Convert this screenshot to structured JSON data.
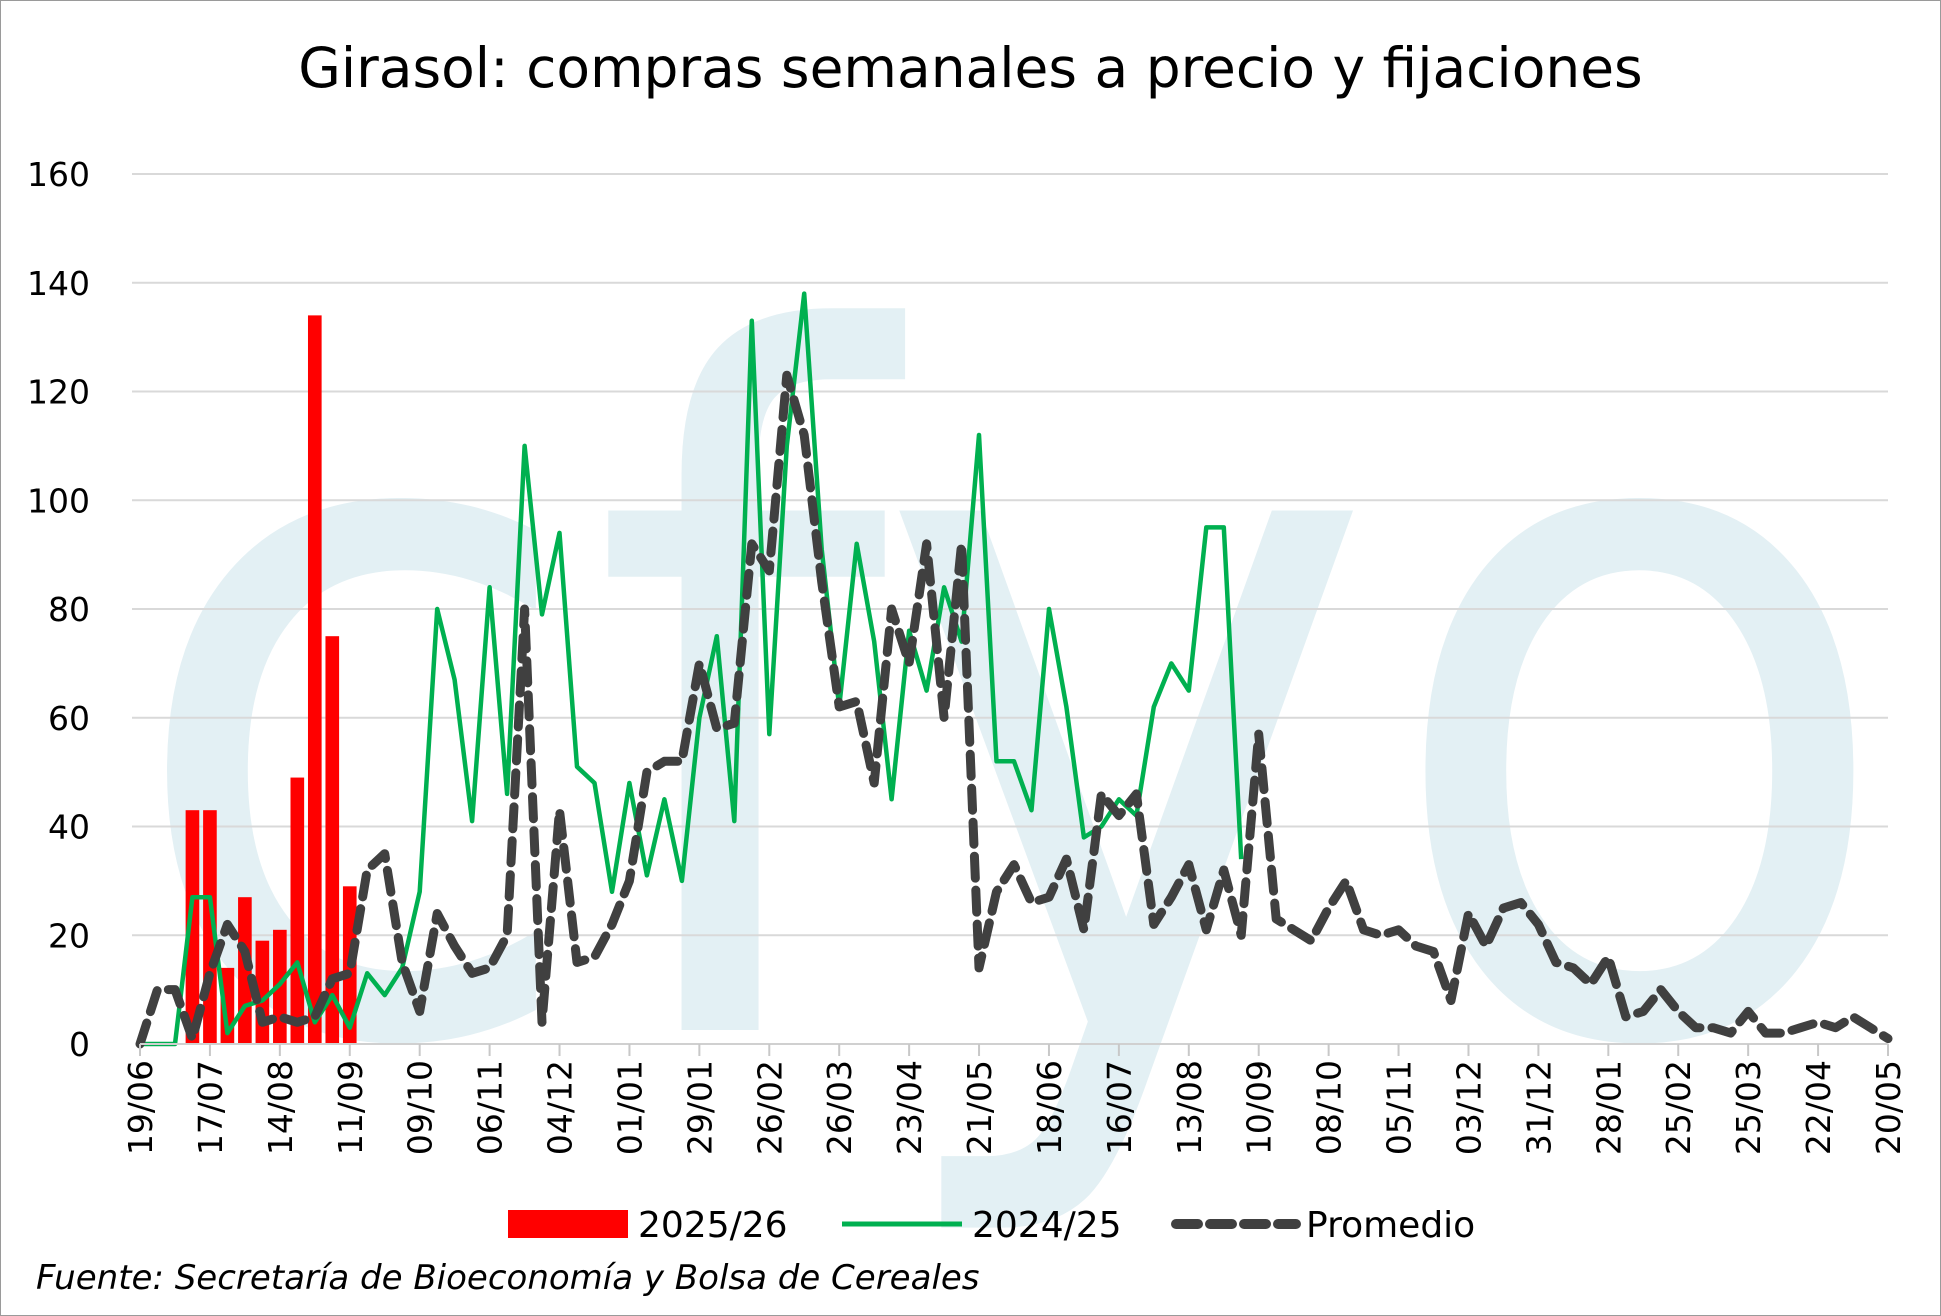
{
  "title": "Girasol: compras semanales a precio y fijaciones",
  "source_note": "Fuente: Secretaría de Bioeconomía y Bolsa de Cereales",
  "watermark_text": "cfyo",
  "colors": {
    "bars": "#ff0000",
    "line_2024": "#00b050",
    "line_avg": "#404040",
    "grid": "#d9d9d9",
    "watermark": "#e3f0f4"
  },
  "chart_data": {
    "type": "bar+line",
    "title": "Girasol: compras semanales a precio y fijaciones",
    "xlabel": "",
    "ylabel": "",
    "ylim": [
      0,
      160
    ],
    "yticks": [
      0,
      20,
      40,
      60,
      80,
      100,
      120,
      140,
      160
    ],
    "grid": true,
    "legend_position": "bottom",
    "x_tick_labels": [
      "19/06",
      "17/07",
      "14/08",
      "11/09",
      "09/10",
      "06/11",
      "04/12",
      "01/01",
      "29/01",
      "26/02",
      "26/03",
      "23/04",
      "21/05",
      "18/06",
      "16/07",
      "13/08",
      "10/09",
      "08/10",
      "05/11",
      "03/12",
      "31/12",
      "28/01",
      "25/02",
      "25/03",
      "22/04",
      "20/05"
    ],
    "weeks_total": 101,
    "series": [
      {
        "name": "2025/26",
        "kind": "bar",
        "color": "#ff0000",
        "week_index_start": 3,
        "values": [
          43,
          43,
          14,
          27,
          19,
          21,
          49,
          134,
          75,
          29
        ]
      },
      {
        "name": "2024/25",
        "kind": "line",
        "color": "#00b050",
        "week_index_start": 0,
        "values": [
          0,
          0,
          0,
          27,
          27,
          2,
          7,
          8,
          11,
          15,
          4,
          9,
          3,
          13,
          9,
          14,
          28,
          80,
          67,
          41,
          84,
          46,
          110,
          79,
          94,
          51,
          48,
          28,
          48,
          31,
          45,
          30,
          60,
          75,
          41,
          133,
          57,
          110,
          138,
          91,
          62,
          92,
          74,
          45,
          76,
          65,
          84,
          74,
          112,
          52,
          52,
          43,
          80,
          62,
          38,
          40,
          45,
          42,
          62,
          70,
          65,
          95,
          95,
          34
        ]
      },
      {
        "name": "Promedio",
        "kind": "dashed-line",
        "color": "#404040",
        "week_index_start": 0,
        "values": [
          0,
          10,
          10,
          1,
          13,
          22,
          17,
          4,
          5,
          4,
          5,
          12,
          13,
          32,
          35,
          15,
          6,
          24,
          18,
          13,
          14,
          20,
          80,
          4,
          43,
          15,
          16,
          22,
          30,
          50,
          52,
          52,
          70,
          58,
          59,
          92,
          87,
          123,
          112,
          85,
          62,
          63,
          48,
          80,
          70,
          92,
          60,
          92,
          14,
          28,
          33,
          26,
          27,
          34,
          21,
          46,
          42,
          46,
          22,
          27,
          33,
          21,
          32,
          20,
          57,
          23,
          21,
          19,
          25,
          30,
          21,
          20,
          21,
          18,
          17,
          8,
          24,
          18,
          25,
          26,
          22,
          15,
          14,
          11,
          16,
          5,
          6,
          10,
          6,
          3,
          3,
          2,
          6,
          2,
          2,
          3,
          4,
          3,
          5,
          3,
          1
        ]
      }
    ]
  }
}
